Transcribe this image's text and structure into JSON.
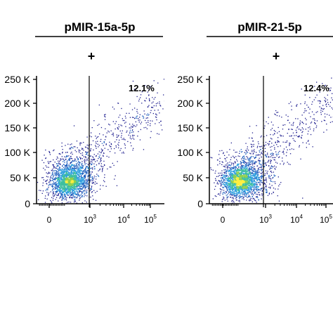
{
  "chart_data": [
    {
      "type": "scatter",
      "subtype": "flow-cytometry-density",
      "group_title": "pMIR-15a-5p",
      "condition": "+",
      "gate_percent": "12.1%",
      "gate_x": 1000,
      "x_scale": "biexponential",
      "x_ticks": [
        {
          "value": 0,
          "label": "0",
          "exp": ""
        },
        {
          "value": 1000,
          "label": "10",
          "exp": "3"
        },
        {
          "value": 10000,
          "label": "10",
          "exp": "4"
        },
        {
          "value": 100000,
          "label": "10",
          "exp": "5"
        }
      ],
      "y_ticks": [
        {
          "value": 0,
          "label": "0"
        },
        {
          "value": 50000,
          "label": "50 K"
        },
        {
          "value": 100000,
          "label": "100 K"
        },
        {
          "value": 150000,
          "label": "150 K"
        },
        {
          "value": 200000,
          "label": "200 K"
        },
        {
          "value": 250000,
          "label": "250 K"
        }
      ],
      "ylim": [
        0,
        262144
      ],
      "grid": false,
      "colormap": [
        "#1f1f8f",
        "#1f5fbf",
        "#2f9fdf",
        "#3fbf9f",
        "#8fcf4f",
        "#ffef3f"
      ]
    },
    {
      "type": "scatter",
      "subtype": "flow-cytometry-density",
      "group_title": "pMIR-21-5p",
      "condition": "+",
      "gate_percent": "12.4%",
      "gate_x": 1000,
      "x_scale": "biexponential",
      "x_ticks": [
        {
          "value": 0,
          "label": "0",
          "exp": ""
        },
        {
          "value": 1000,
          "label": "10",
          "exp": "3"
        },
        {
          "value": 10000,
          "label": "10",
          "exp": "4"
        },
        {
          "value": 100000,
          "label": "10",
          "exp": "5"
        }
      ],
      "y_ticks": [
        {
          "value": 0,
          "label": "0"
        },
        {
          "value": 50000,
          "label": "50 K"
        },
        {
          "value": 100000,
          "label": "100 K"
        },
        {
          "value": 150000,
          "label": "150 K"
        },
        {
          "value": 200000,
          "label": "200 K"
        },
        {
          "value": 250000,
          "label": "250 K"
        }
      ],
      "ylim": [
        0,
        262144
      ],
      "grid": false,
      "colormap": [
        "#1f1f8f",
        "#1f5fbf",
        "#2f9fdf",
        "#3fbf9f",
        "#8fcf4f",
        "#ffef3f"
      ]
    }
  ]
}
